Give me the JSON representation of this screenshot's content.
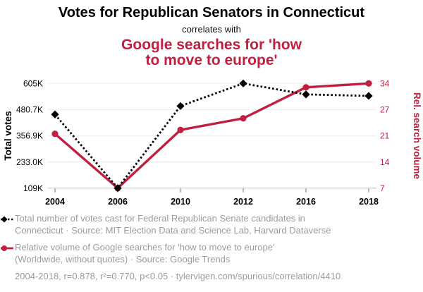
{
  "header": {
    "title": "Votes for Republican Senators in Connecticut",
    "connector": "correlates with",
    "subtitle_lines": [
      "Google searches for 'how",
      "to move to europe'"
    ]
  },
  "colors": {
    "accent_red": "#c11f3f",
    "series_black": "#000000",
    "legend_text": "#9b9b9b",
    "gridline": "#efefef",
    "axis_line": "#c6c6c6",
    "tick_mark": "#8a8a8a"
  },
  "chart_data": {
    "type": "line",
    "x": [
      2004,
      2006,
      2010,
      2012,
      2016,
      2018
    ],
    "x_tick_labels": [
      "2004",
      "2006",
      "2010",
      "2012",
      "2016",
      "2018"
    ],
    "grid": true,
    "legend_position": "bottom",
    "left_axis": {
      "label": "Total votes",
      "tick_labels": [
        "109K",
        "233.0K",
        "356.9K",
        "480.7K",
        "605K"
      ],
      "range": [
        109000,
        605000
      ]
    },
    "right_axis": {
      "label": "Rel. search volume",
      "tick_labels": [
        "7",
        "14",
        "21",
        "27",
        "34"
      ],
      "range": [
        7,
        34
      ]
    },
    "series": [
      {
        "name": "Total votes cast for Federal Republican Senate candidates in Connecticut",
        "axis": "left",
        "color": "#000000",
        "marker": "diamond",
        "line_style": "dotted",
        "values": [
          458000,
          109000,
          498000,
          605000,
          553000,
          546000
        ]
      },
      {
        "name": "Relative volume of Google searches for 'how to move to europe'",
        "axis": "right",
        "color": "#c11f3f",
        "marker": "circle",
        "line_style": "solid",
        "values": [
          21,
          7,
          22,
          25,
          33,
          34
        ]
      }
    ]
  },
  "legend": {
    "items": [
      {
        "marker": "diamond-dotted",
        "color": "#000000",
        "lines": [
          "Total number of votes cast for Federal Republican Senate candidates in",
          "Connecticut · Source: MIT Election Data and Science Lab, Harvard Dataverse"
        ]
      },
      {
        "marker": "circle-solid",
        "color": "#c11f3f",
        "lines": [
          "Relative volume of Google searches for 'how to move to europe'",
          "(Worldwide, without quotes) · Source: Google Trends"
        ]
      }
    ],
    "footer": "2004-2018, r=0.878, r²=0.770, p<0.05 · tylervigen.com/spurious/correlation/4410"
  }
}
